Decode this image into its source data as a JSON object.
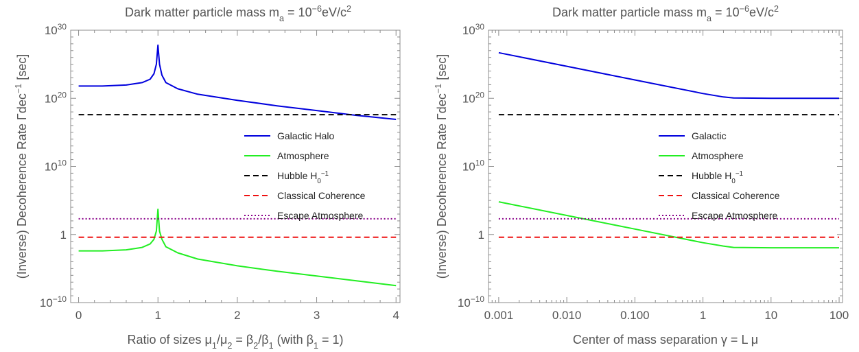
{
  "chart_data": [
    {
      "type": "line",
      "title": "Dark matter particle mass  mₐ = 10⁻⁶eV/c²",
      "xlabel": "Ratio of sizes  μ₁/μ₂ = β₂/β₁  (with β₁ = 1)",
      "ylabel": "(Inverse) Decoherence Rate  Γdec⁻¹ [sec]",
      "x_scale": "linear",
      "y_scale": "log",
      "xlim": [
        -0.1,
        4.05
      ],
      "ylim_log10": [
        -10,
        30
      ],
      "x_ticks": [
        0,
        1,
        2,
        3,
        4
      ],
      "x_tick_labels": [
        "0",
        "1",
        "2",
        "3",
        "4"
      ],
      "y_ticks_log10": [
        -10,
        0,
        10,
        20,
        30
      ],
      "y_tick_labels": [
        "10⁻¹⁰",
        "1",
        "10¹⁰",
        "10²⁰",
        "10³⁰"
      ],
      "grid": false,
      "legend_position": "right-center",
      "series": [
        {
          "name": "Galactic Halo",
          "color": "#0000dd",
          "dash": "solid",
          "points_log10": [
            [
              0,
              21.8
            ],
            [
              0.3,
              21.8
            ],
            [
              0.6,
              21.95
            ],
            [
              0.8,
              22.3
            ],
            [
              0.9,
              22.8
            ],
            [
              0.95,
              23.6
            ],
            [
              0.98,
              25
            ],
            [
              1.0,
              27.8
            ],
            [
              1.02,
              25
            ],
            [
              1.05,
              23.4
            ],
            [
              1.1,
              22.3
            ],
            [
              1.25,
              21.4
            ],
            [
              1.5,
              20.6
            ],
            [
              2.0,
              19.7
            ],
            [
              2.5,
              18.9
            ],
            [
              3.0,
              18.2
            ],
            [
              3.5,
              17.5
            ],
            [
              4.0,
              16.9
            ]
          ]
        },
        {
          "name": "Atmosphere",
          "color": "#22ee22",
          "dash": "solid",
          "points_log10": [
            [
              0,
              -2.4
            ],
            [
              0.3,
              -2.4
            ],
            [
              0.6,
              -2.25
            ],
            [
              0.8,
              -1.9
            ],
            [
              0.9,
              -1.4
            ],
            [
              0.95,
              -0.7
            ],
            [
              0.98,
              0.5
            ],
            [
              1.0,
              3.7
            ],
            [
              1.02,
              0.5
            ],
            [
              1.05,
              -0.7
            ],
            [
              1.1,
              -1.8
            ],
            [
              1.25,
              -2.7
            ],
            [
              1.5,
              -3.6
            ],
            [
              2.0,
              -4.6
            ],
            [
              2.5,
              -5.4
            ],
            [
              3.0,
              -6.1
            ],
            [
              3.5,
              -6.8
            ],
            [
              4.0,
              -7.5
            ]
          ]
        },
        {
          "name": "Hubble H₀⁻¹",
          "color": "#000000",
          "dash": "8,5",
          "points_log10": [
            [
              0,
              17.6
            ],
            [
              4.0,
              17.6
            ]
          ]
        },
        {
          "name": "Classical Coherence",
          "color": "#ee1111",
          "dash": "8,5",
          "points_log10": [
            [
              0,
              -0.4
            ],
            [
              4.0,
              -0.4
            ]
          ]
        },
        {
          "name": "Escape Atmosphere",
          "color": "#880088",
          "dash": "2,3",
          "points_log10": [
            [
              0,
              2.3
            ],
            [
              4.0,
              2.3
            ]
          ]
        }
      ]
    },
    {
      "type": "line",
      "title": "Dark matter particle mass  mₐ = 10⁻⁶eV/c²",
      "xlabel": "Center of mass separation  γ = L μ",
      "ylabel": "(Inverse) Decoherence Rate  Γdec⁻¹ [sec]",
      "x_scale": "log",
      "y_scale": "log",
      "xlim_log10": [
        -3.15,
        2.05
      ],
      "ylim_log10": [
        -10,
        30
      ],
      "x_ticks_log10": [
        -3,
        -2,
        -1,
        0,
        1,
        2
      ],
      "x_tick_labels": [
        "0.001",
        "0.010",
        "0.100",
        "1",
        "10",
        "100"
      ],
      "y_ticks_log10": [
        -10,
        0,
        10,
        20,
        30
      ],
      "y_tick_labels": [
        "10⁻¹⁰",
        "1",
        "10¹⁰",
        "10²⁰",
        "10³⁰"
      ],
      "grid": false,
      "legend_position": "right-center",
      "series": [
        {
          "name": "Galactic",
          "color": "#0000dd",
          "dash": "solid",
          "points_log10": [
            [
              -3,
              26.7
            ],
            [
              -2,
              24.7
            ],
            [
              -1,
              22.7
            ],
            [
              0,
              20.7
            ],
            [
              0.3,
              20.2
            ],
            [
              0.45,
              20.05
            ],
            [
              1,
              20
            ],
            [
              2,
              20
            ]
          ]
        },
        {
          "name": "Atmosphere",
          "color": "#22ee22",
          "dash": "solid",
          "points_log10": [
            [
              -3,
              4.8
            ],
            [
              -2,
              2.8
            ],
            [
              -1,
              0.8
            ],
            [
              0,
              -1.2
            ],
            [
              0.3,
              -1.7
            ],
            [
              0.45,
              -1.9
            ],
            [
              1,
              -1.95
            ],
            [
              2,
              -1.95
            ]
          ]
        },
        {
          "name": "Hubble H₀⁻¹",
          "color": "#000000",
          "dash": "8,5",
          "points_log10": [
            [
              -3,
              17.6
            ],
            [
              2,
              17.6
            ]
          ]
        },
        {
          "name": "Classical Coherence",
          "color": "#ee1111",
          "dash": "8,5",
          "points_log10": [
            [
              -3,
              -0.4
            ],
            [
              2,
              -0.4
            ]
          ]
        },
        {
          "name": "Escape Atmosphere",
          "color": "#880088",
          "dash": "2,3",
          "points_log10": [
            [
              -3,
              2.3
            ],
            [
              2,
              2.3
            ]
          ]
        }
      ]
    }
  ]
}
